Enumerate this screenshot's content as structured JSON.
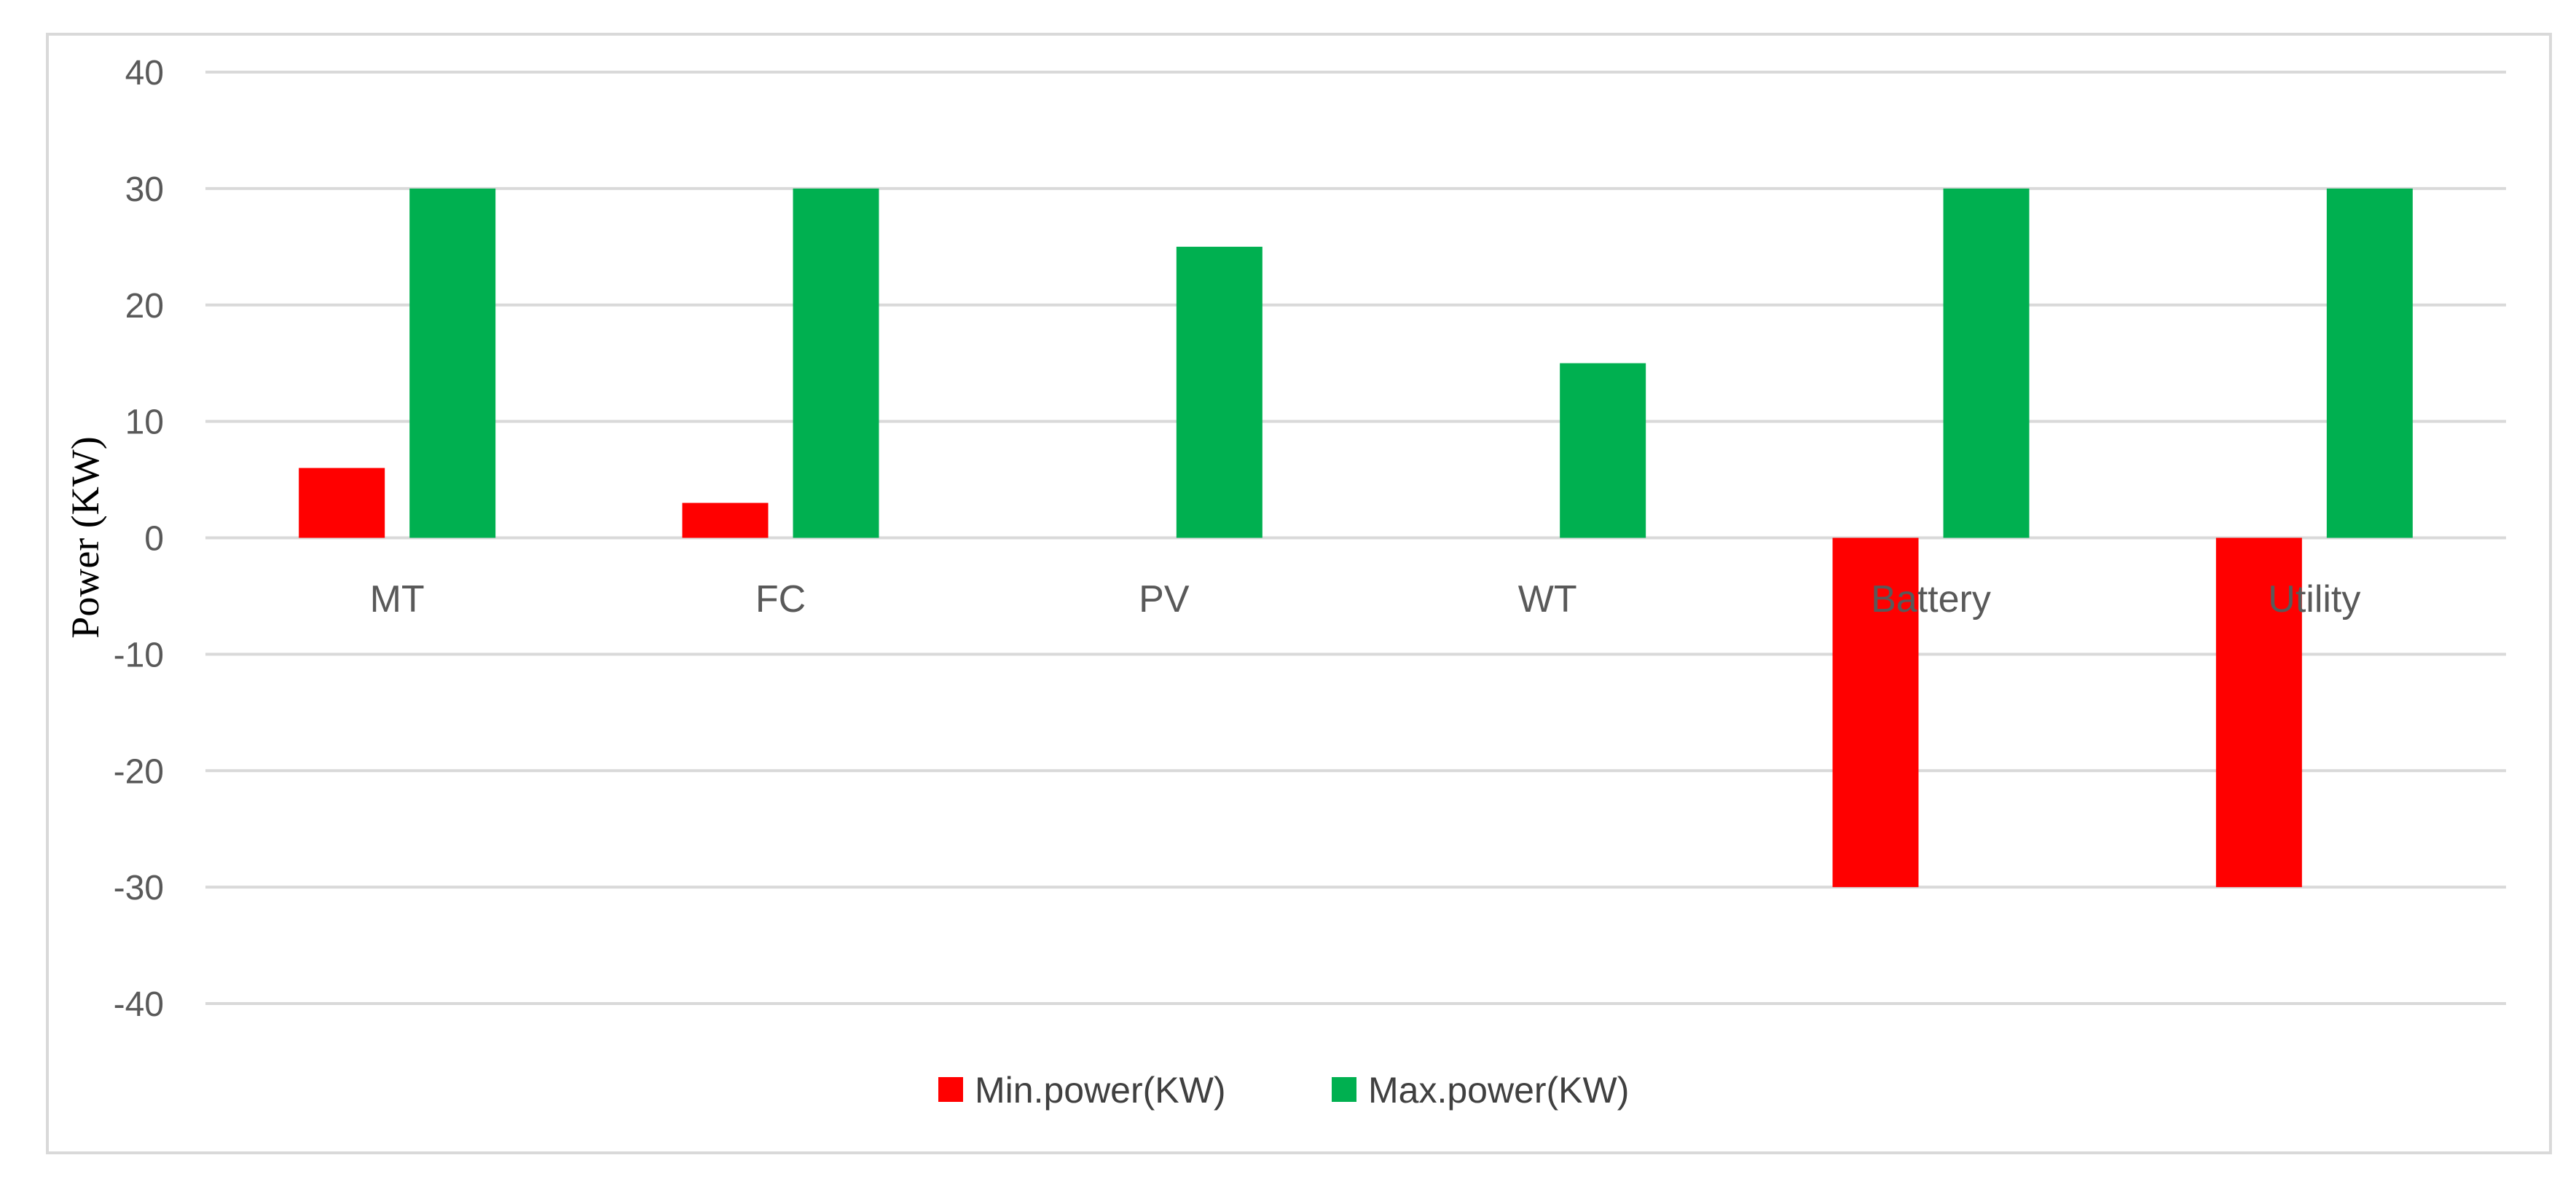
{
  "chart_data": {
    "type": "bar",
    "title": "",
    "xlabel": "",
    "ylabel": "Power (KW)",
    "categories": [
      "MT",
      "FC",
      "PV",
      "WT",
      "Battery",
      "Utility"
    ],
    "series": [
      {
        "name": "Min.power(KW)",
        "color": "#ff0000",
        "values": [
          6,
          3,
          0,
          0,
          -30,
          -30
        ]
      },
      {
        "name": "Max.power(KW)",
        "color": "#00b050",
        "values": [
          30,
          30,
          25,
          15,
          30,
          30
        ]
      }
    ],
    "ylim": [
      -40,
      40
    ],
    "yticks": [
      40,
      30,
      20,
      10,
      0,
      -10,
      -20,
      -30,
      -40
    ],
    "grid": true,
    "legend": "bottom-center"
  }
}
